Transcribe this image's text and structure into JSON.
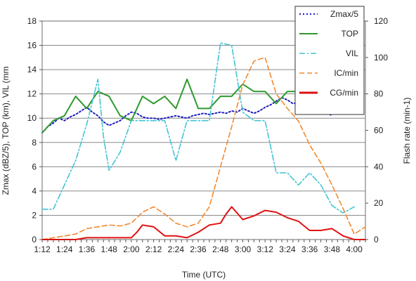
{
  "chart_data": {
    "type": "line",
    "xlabel": "Time (UTC)",
    "ylabel_left": "Zmax (dBZ/5), TOP (km), VIL (mm",
    "ylabel_right": "Flash rate (min-1)",
    "ylim_left": [
      0,
      18
    ],
    "ylim_right": [
      0,
      120
    ],
    "yticks_left": [
      "0",
      "2",
      "4",
      "6",
      "8",
      "10",
      "12",
      "14",
      "16",
      "18"
    ],
    "yticks_right": [
      "0",
      "20",
      "40",
      "60",
      "80",
      "100",
      "120"
    ],
    "x_ticks": [
      "1:12",
      "1:24",
      "1:36",
      "1:48",
      "2:00",
      "2:12",
      "2:24",
      "2:36",
      "2:48",
      "3:00",
      "3:12",
      "3:24",
      "3:36",
      "3:48",
      "4:00"
    ],
    "x_range": [
      1.2,
      4.1
    ],
    "legend_position": "top-right",
    "series": [
      {
        "name": "Zmax/5",
        "axis": "left",
        "color": "#1f1fbf",
        "style": "dotted",
        "x": [
          1.2,
          1.25,
          1.3,
          1.35,
          1.4,
          1.45,
          1.5,
          1.55,
          1.6,
          1.65,
          1.7,
          1.75,
          1.8,
          1.85,
          1.9,
          1.95,
          2.0,
          2.05,
          2.1,
          2.15,
          2.2,
          2.25,
          2.3,
          2.35,
          2.4,
          2.45,
          2.5,
          2.55,
          2.6,
          2.65,
          2.7,
          2.75,
          2.8,
          2.85,
          2.9,
          2.95,
          3.0,
          3.05,
          3.1,
          3.15,
          3.2,
          3.25,
          3.3,
          3.35,
          3.4,
          3.45,
          3.5,
          3.55,
          3.6,
          3.65,
          3.7,
          3.75,
          3.8
        ],
        "y": [
          8.8,
          9.3,
          9.6,
          10.0,
          9.8,
          10.1,
          10.3,
          10.6,
          10.9,
          10.5,
          10.2,
          9.7,
          9.4,
          9.6,
          9.8,
          10.2,
          10.5,
          10.4,
          10.1,
          10.0,
          10.0,
          9.9,
          10.0,
          10.1,
          10.2,
          10.1,
          10.0,
          10.2,
          10.3,
          10.4,
          10.3,
          10.4,
          10.5,
          10.4,
          10.6,
          10.5,
          10.8,
          10.6,
          10.4,
          10.6,
          10.9,
          11.1,
          11.4,
          11.7,
          11.5,
          11.2,
          11.3,
          11.4,
          11.2,
          11.0,
          10.8,
          10.5,
          10.2
        ]
      },
      {
        "name": "TOP",
        "axis": "left",
        "color": "#2e9a2e",
        "style": "solid",
        "x": [
          1.2,
          1.3,
          1.4,
          1.5,
          1.6,
          1.7,
          1.8,
          1.9,
          2.0,
          2.1,
          2.2,
          2.3,
          2.4,
          2.5,
          2.6,
          2.7,
          2.8,
          2.9,
          3.0,
          3.1,
          3.2,
          3.3,
          3.4,
          3.5,
          3.6,
          3.7,
          3.8,
          3.9,
          4.0
        ],
        "y": [
          8.8,
          9.8,
          10.2,
          11.8,
          10.8,
          12.2,
          11.8,
          10.2,
          9.8,
          11.8,
          11.2,
          11.8,
          10.8,
          13.2,
          10.8,
          10.8,
          11.8,
          11.8,
          12.8,
          12.2,
          12.2,
          11.2,
          12.2,
          12.2,
          12.2,
          11.8,
          11.8,
          11.2,
          10.8
        ]
      },
      {
        "name": "VIL",
        "axis": "left",
        "color": "#44c4d4",
        "style": "dashdot",
        "x": [
          1.2,
          1.3,
          1.4,
          1.5,
          1.6,
          1.7,
          1.75,
          1.8,
          1.9,
          2.0,
          2.1,
          2.2,
          2.3,
          2.4,
          2.5,
          2.6,
          2.7,
          2.8,
          2.9,
          3.0,
          3.1,
          3.2,
          3.3,
          3.4,
          3.5,
          3.6,
          3.7,
          3.8,
          3.9,
          4.0
        ],
        "y": [
          2.5,
          2.5,
          4.5,
          6.5,
          9.5,
          13.2,
          8.5,
          5.7,
          7.2,
          9.8,
          9.8,
          9.8,
          9.8,
          6.5,
          9.8,
          9.8,
          9.8,
          16.2,
          16.0,
          10.5,
          9.8,
          9.8,
          5.5,
          5.5,
          4.5,
          5.5,
          4.5,
          2.8,
          2.2,
          2.7
        ]
      },
      {
        "name": "IC/min",
        "axis": "right",
        "color": "#f28a30",
        "style": "dashed",
        "x": [
          1.2,
          1.3,
          1.4,
          1.5,
          1.6,
          1.7,
          1.8,
          1.9,
          2.0,
          2.1,
          2.2,
          2.3,
          2.4,
          2.5,
          2.6,
          2.7,
          2.8,
          2.9,
          3.0,
          3.1,
          3.2,
          3.3,
          3.4,
          3.5,
          3.6,
          3.7,
          3.8,
          3.9,
          4.0,
          4.1
        ],
        "y": [
          0,
          1,
          2,
          3,
          6,
          7,
          8,
          7.5,
          9,
          15,
          18,
          14,
          9,
          7,
          9,
          18,
          40,
          62,
          85,
          98,
          100,
          80,
          72,
          65,
          52,
          42,
          30,
          17,
          3,
          7
        ]
      },
      {
        "name": "CG/min",
        "axis": "right",
        "color": "#e01010",
        "style": "solid",
        "x": [
          1.2,
          1.3,
          1.4,
          1.5,
          1.6,
          1.7,
          1.8,
          1.9,
          2.0,
          2.05,
          2.1,
          2.2,
          2.3,
          2.4,
          2.5,
          2.6,
          2.7,
          2.8,
          2.85,
          2.9,
          3.0,
          3.1,
          3.2,
          3.3,
          3.4,
          3.5,
          3.6,
          3.7,
          3.8,
          3.9,
          4.0,
          4.1
        ],
        "y": [
          0,
          0,
          0,
          0,
          1,
          1,
          1,
          1,
          1,
          4,
          8,
          7,
          2,
          2,
          1,
          4,
          8,
          9,
          14,
          18,
          11,
          13,
          16,
          15,
          12,
          10,
          5,
          5,
          6,
          2,
          0,
          0
        ]
      }
    ]
  }
}
